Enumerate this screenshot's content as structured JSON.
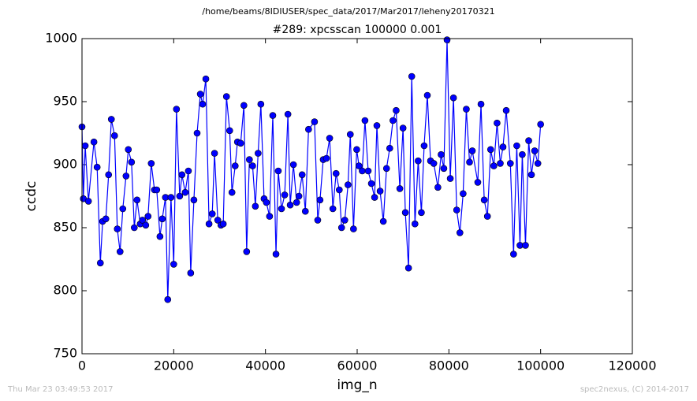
{
  "chart_data": {
    "type": "line",
    "title": "/home/beams/8IDIUSER/spec_data/2017/Mar2017/leheny20170321",
    "subtitle": "#289: xpcsscan 100000 0.001",
    "xlabel": "img_n",
    "ylabel": "ccdc",
    "color": "#0000ff",
    "marker": "circle",
    "grid": false,
    "xlim": [
      0,
      120000
    ],
    "xticks": [
      0,
      20000,
      40000,
      60000,
      80000,
      100000,
      120000
    ],
    "ylim": [
      750,
      1000
    ],
    "yticks": [
      750,
      800,
      850,
      900,
      950,
      1000
    ],
    "x": [
      0,
      300,
      700,
      1400,
      2600,
      3300,
      4000,
      4500,
      5200,
      5800,
      6400,
      7100,
      7700,
      8300,
      8900,
      9600,
      10100,
      10800,
      11400,
      12000,
      12700,
      13200,
      13900,
      14400,
      15100,
      15800,
      16300,
      17000,
      17500,
      18200,
      18700,
      19400,
      20000,
      20600,
      21300,
      21800,
      22500,
      23200,
      23700,
      24400,
      25100,
      25800,
      26300,
      27000,
      27700,
      28400,
      28900,
      29600,
      30300,
      30800,
      31500,
      32200,
      32700,
      33400,
      33900,
      34600,
      35300,
      35900,
      36500,
      37200,
      37800,
      38400,
      39000,
      39700,
      40200,
      40900,
      41600,
      42300,
      42800,
      43500,
      44200,
      44900,
      45400,
      46100,
      46800,
      47300,
      48000,
      48700,
      49400,
      50700,
      51400,
      51900,
      52600,
      53300,
      54000,
      54700,
      55400,
      56100,
      56600,
      57300,
      58000,
      58500,
      59200,
      59900,
      60400,
      61100,
      61700,
      62400,
      63100,
      63800,
      64300,
      65000,
      65700,
      66400,
      67100,
      67800,
      68500,
      69300,
      70000,
      70500,
      71200,
      71900,
      72600,
      73300,
      74000,
      74600,
      75300,
      76000,
      76700,
      77600,
      78300,
      78900,
      79600,
      80300,
      81000,
      81700,
      82400,
      83100,
      83800,
      84500,
      85100,
      86300,
      87000,
      87700,
      88400,
      89100,
      89800,
      90500,
      91200,
      91800,
      92500,
      93400,
      94100,
      94800,
      95500,
      96000,
      96700,
      97400,
      98000,
      98700,
      99400,
      100000
    ],
    "values": [
      930,
      873,
      915,
      871,
      918,
      898,
      822,
      855,
      857,
      892,
      936,
      923,
      849,
      831,
      865,
      891,
      912,
      902,
      850,
      872,
      853,
      856,
      852,
      859,
      901,
      880,
      880,
      843,
      857,
      874,
      793,
      874,
      821,
      944,
      875,
      892,
      878,
      895,
      814,
      872,
      925,
      956,
      948,
      968,
      853,
      861,
      909,
      856,
      852,
      853,
      954,
      927,
      878,
      899,
      918,
      917,
      947,
      831,
      904,
      899,
      867,
      909,
      948,
      873,
      870,
      859,
      939,
      829,
      895,
      865,
      876,
      940,
      868,
      900,
      870,
      875,
      892,
      863,
      928,
      934,
      856,
      872,
      904,
      905,
      921,
      865,
      893,
      880,
      850,
      856,
      884,
      924,
      849,
      912,
      899,
      895,
      935,
      895,
      885,
      874,
      931,
      879,
      855,
      897,
      913,
      935,
      943,
      881,
      929,
      862,
      818,
      970,
      853,
      903,
      862,
      915,
      955,
      903,
      901,
      882,
      908,
      897,
      999,
      889,
      953,
      864,
      846,
      877,
      944,
      902,
      911,
      886,
      948,
      872,
      859,
      912,
      899,
      933,
      901,
      914,
      943,
      901,
      829,
      915,
      836,
      908,
      836,
      919,
      892,
      911,
      901,
      932
    ]
  },
  "footer": {
    "timestamp": "Thu Mar 23 03:49:53 2017",
    "credit": "spec2nexus, (C) 2014-2017"
  }
}
